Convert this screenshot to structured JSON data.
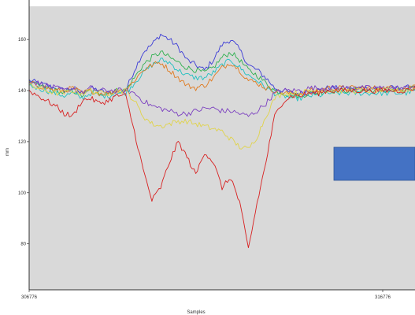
{
  "chart_data": {
    "type": "line",
    "title": "",
    "xlabel": "Samples",
    "ylabel": "mm",
    "xlim": [
      306776,
      316776
    ],
    "ylim": [
      62,
      173
    ],
    "x_tick_labels": [
      "306776",
      "316776"
    ],
    "y_ticks": [
      80,
      100,
      120,
      140,
      160
    ],
    "grid": false,
    "background": "#d9d9d9",
    "overlay_box_color": "#4472c4",
    "series": [
      {
        "color": "#3b3bd6",
        "values": [
          144,
          143,
          142,
          141,
          140,
          141,
          139,
          141,
          140,
          139,
          140,
          140,
          148,
          155,
          158,
          162,
          160,
          157,
          152,
          150,
          148,
          152,
          158,
          160,
          156,
          150,
          148,
          145,
          141,
          140,
          139,
          139,
          140,
          140,
          141,
          141,
          141,
          141,
          141,
          141,
          141,
          141,
          141,
          141,
          142
        ]
      },
      {
        "color": "#2fb04f",
        "values": [
          143,
          142,
          141,
          140,
          139,
          140,
          138,
          140,
          139,
          139,
          140,
          140,
          145,
          150,
          153,
          155,
          153,
          151,
          149,
          148,
          147,
          149,
          153,
          155,
          152,
          148,
          146,
          143,
          140,
          139,
          138,
          138,
          139,
          139,
          140,
          140,
          140,
          140,
          140,
          140,
          140,
          140,
          140,
          140,
          141
        ]
      },
      {
        "color": "#20c0c0",
        "values": [
          142,
          141,
          140,
          139,
          138,
          139,
          137,
          139,
          138,
          138,
          139,
          139,
          143,
          147,
          150,
          152,
          151,
          148,
          146,
          145,
          145,
          147,
          150,
          152,
          149,
          146,
          144,
          141,
          139,
          138,
          137,
          137,
          138,
          138,
          139,
          139,
          139,
          139,
          139,
          139,
          139,
          139,
          139,
          139,
          140
        ]
      },
      {
        "color": "#e07a1f",
        "values": [
          143,
          142,
          141,
          140,
          140,
          141,
          139,
          140,
          139,
          139,
          140,
          140,
          144,
          148,
          150,
          151,
          148,
          145,
          142,
          141,
          142,
          145,
          149,
          151,
          148,
          144,
          143,
          141,
          140,
          139,
          139,
          139,
          140,
          140,
          141,
          141,
          141,
          141,
          141,
          141,
          141,
          141,
          141,
          141,
          142
        ]
      },
      {
        "color": "#7b3fc0",
        "values": [
          144,
          143,
          142,
          141,
          140,
          141,
          139,
          141,
          140,
          140,
          140,
          140,
          139,
          136,
          134,
          133,
          132,
          131,
          131,
          132,
          133,
          133,
          132,
          132,
          131,
          130,
          132,
          135,
          139,
          140,
          140,
          140,
          141,
          141,
          141,
          141,
          141,
          141,
          141,
          141,
          141,
          141,
          141,
          141,
          142
        ]
      },
      {
        "color": "#e0d34a",
        "values": [
          142,
          141,
          140,
          139,
          139,
          140,
          139,
          140,
          139,
          139,
          140,
          140,
          136,
          130,
          127,
          126,
          127,
          128,
          128,
          127,
          126,
          125,
          124,
          121,
          118,
          117,
          122,
          130,
          137,
          139,
          139,
          139,
          140,
          140,
          140,
          140,
          140,
          140,
          140,
          140,
          140,
          140,
          140,
          140,
          141
        ]
      },
      {
        "color": "#d82020",
        "values": [
          140,
          138,
          136,
          134,
          131,
          130,
          136,
          137,
          135,
          136,
          138,
          138,
          124,
          109,
          97,
          102,
          112,
          120,
          114,
          107,
          116,
          112,
          102,
          106,
          96,
          78,
          96,
          112,
          130,
          136,
          138,
          138,
          139,
          139,
          140,
          140,
          140,
          140,
          140,
          140,
          140,
          140,
          140,
          140,
          141
        ]
      }
    ]
  }
}
